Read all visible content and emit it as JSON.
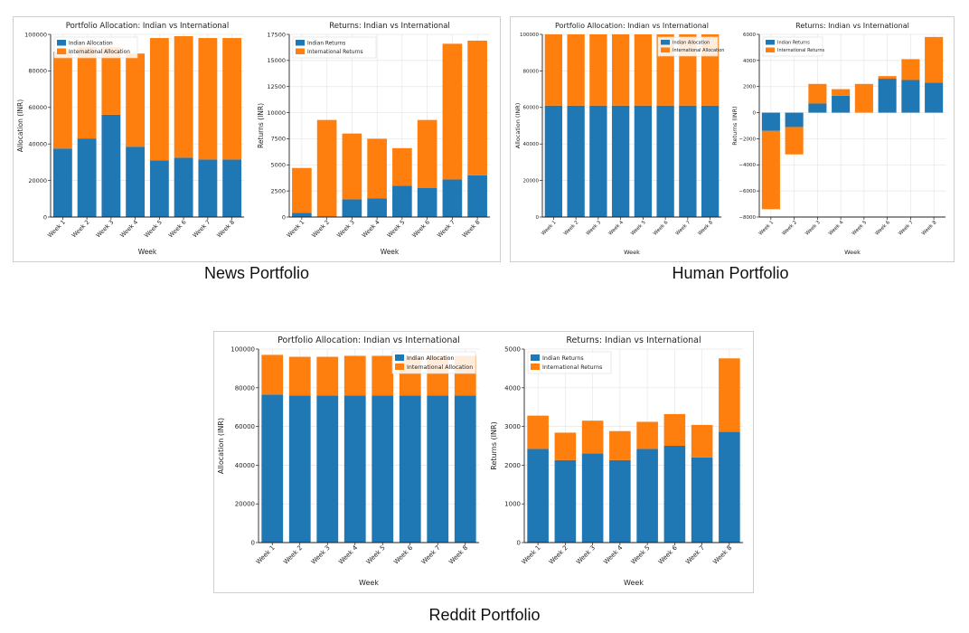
{
  "colors": {
    "indian": "#1f77b4",
    "international": "#ff7f0e",
    "grid": "#e6e6e6",
    "axis": "#222222"
  },
  "captions": {
    "news": "News Portfolio",
    "human": "Human Portfolio",
    "reddit": "Reddit Portfolio"
  },
  "chart_data": [
    {
      "id": "news-allocation",
      "type": "bar",
      "stacked": true,
      "title": "Portfolio Allocation: Indian vs International",
      "xlabel": "Week",
      "ylabel": "Allocation (INR)",
      "categories": [
        "Week 1",
        "Week 2",
        "Week 3",
        "Week 4",
        "Week 5",
        "Week 6",
        "Week 7",
        "Week 8"
      ],
      "series": [
        {
          "name": "Indian Allocation",
          "values": [
            37500,
            43000,
            56000,
            38500,
            31000,
            32500,
            31500,
            31500
          ]
        },
        {
          "name": "International Allocation",
          "values": [
            53000,
            50000,
            37000,
            51000,
            67000,
            66500,
            66500,
            66500
          ]
        }
      ],
      "ylim": [
        0,
        100000
      ],
      "yticks": [
        0,
        20000,
        40000,
        60000,
        80000,
        100000
      ],
      "ytick_labels": [
        "0",
        "20000",
        "40000",
        "60000",
        "80000",
        "100000"
      ],
      "legend": "top-left",
      "grid": true
    },
    {
      "id": "news-returns",
      "type": "bar",
      "stacked": true,
      "title": "Returns: Indian vs International",
      "xlabel": "Week",
      "ylabel": "Returns (INR)",
      "categories": [
        "Week 1",
        "Week 2",
        "Week 3",
        "Week 4",
        "Week 5",
        "Week 6",
        "Week 7",
        "Week 8"
      ],
      "series": [
        {
          "name": "Indian Returns",
          "values": [
            400,
            0,
            1700,
            1800,
            3000,
            2800,
            3600,
            4000
          ]
        },
        {
          "name": "International Returns",
          "values": [
            4300,
            9300,
            6300,
            5700,
            3600,
            6500,
            13000,
            12900
          ]
        }
      ],
      "ylim": [
        0,
        17500
      ],
      "yticks": [
        0,
        2500,
        5000,
        7500,
        10000,
        12500,
        15000,
        17500
      ],
      "ytick_labels": [
        "0",
        "2500",
        "5000",
        "7500",
        "10000",
        "12500",
        "15000",
        "17500"
      ],
      "legend": "top-left",
      "grid": true
    },
    {
      "id": "human-allocation",
      "type": "bar",
      "stacked": true,
      "title": "Portfolio Allocation: Indian vs International",
      "xlabel": "Week",
      "ylabel": "Allocation (INR)",
      "categories": [
        "Week 1",
        "Week 2",
        "Week 3",
        "Week 4",
        "Week 5",
        "Week 6",
        "Week 7",
        "Week 8"
      ],
      "series": [
        {
          "name": "Indian Allocation",
          "values": [
            61000,
            61000,
            61000,
            61000,
            61000,
            61000,
            61000,
            61000
          ]
        },
        {
          "name": "International Allocation",
          "values": [
            39000,
            39000,
            39000,
            39000,
            39000,
            39000,
            39000,
            39000
          ]
        }
      ],
      "ylim": [
        0,
        100000
      ],
      "yticks": [
        0,
        20000,
        40000,
        60000,
        80000,
        100000
      ],
      "ytick_labels": [
        "0",
        "20000",
        "40000",
        "60000",
        "80000",
        "100000"
      ],
      "legend": "top-right",
      "grid": true
    },
    {
      "id": "human-returns",
      "type": "bar",
      "stacked": true,
      "title": "Returns: Indian vs International",
      "xlabel": "Week",
      "ylabel": "Returns (INR)",
      "categories": [
        "Week 1",
        "Week 2",
        "Week 3",
        "Week 4",
        "Week 5",
        "Week 6",
        "Week 7",
        "Week 8"
      ],
      "series": [
        {
          "name": "Indian Returns",
          "values": [
            -1400,
            -1100,
            700,
            1300,
            0,
            2600,
            2500,
            2300
          ]
        },
        {
          "name": "International Returns",
          "values": [
            -6000,
            -2100,
            1500,
            500,
            2200,
            200,
            1600,
            3500
          ]
        }
      ],
      "ylim": [
        -8000,
        6000
      ],
      "yticks": [
        -8000,
        -6000,
        -4000,
        -2000,
        0,
        2000,
        4000,
        6000
      ],
      "ytick_labels": [
        "−8000",
        "−6000",
        "−4000",
        "−2000",
        "0",
        "2000",
        "4000",
        "6000"
      ],
      "legend": "top-left",
      "grid": true
    },
    {
      "id": "reddit-allocation",
      "type": "bar",
      "stacked": true,
      "title": "Portfolio Allocation: Indian vs International",
      "xlabel": "Week",
      "ylabel": "Allocation (INR)",
      "categories": [
        "Week 1",
        "Week 2",
        "Week 3",
        "Week 4",
        "Week 5",
        "Week 6",
        "Week 7",
        "Week 8"
      ],
      "series": [
        {
          "name": "Indian Allocation",
          "values": [
            76500,
            76000,
            76000,
            76000,
            76000,
            76000,
            76000,
            76000
          ]
        },
        {
          "name": "International Allocation",
          "values": [
            20500,
            20000,
            20000,
            20500,
            20500,
            20500,
            20500,
            20500
          ]
        }
      ],
      "ylim": [
        0,
        100000
      ],
      "yticks": [
        0,
        20000,
        40000,
        60000,
        80000,
        100000
      ],
      "ytick_labels": [
        "0",
        "20000",
        "40000",
        "60000",
        "80000",
        "100000"
      ],
      "legend": "top-right",
      "grid": true
    },
    {
      "id": "reddit-returns",
      "type": "bar",
      "stacked": true,
      "title": "Returns: Indian vs International",
      "xlabel": "Week",
      "ylabel": "Returns (INR)",
      "categories": [
        "Week 1",
        "Week 2",
        "Week 3",
        "Week 4",
        "Week 5",
        "Week 6",
        "Week 7",
        "Week 8"
      ],
      "series": [
        {
          "name": "Indian Returns",
          "values": [
            2420,
            2130,
            2300,
            2130,
            2420,
            2500,
            2200,
            2860
          ]
        },
        {
          "name": "International Returns",
          "values": [
            860,
            710,
            850,
            750,
            700,
            820,
            840,
            1900
          ]
        }
      ],
      "ylim": [
        0,
        5000
      ],
      "yticks": [
        0,
        1000,
        2000,
        3000,
        4000,
        5000
      ],
      "ytick_labels": [
        "0",
        "1000",
        "2000",
        "3000",
        "4000",
        "5000"
      ],
      "legend": "top-left",
      "grid": true
    }
  ]
}
